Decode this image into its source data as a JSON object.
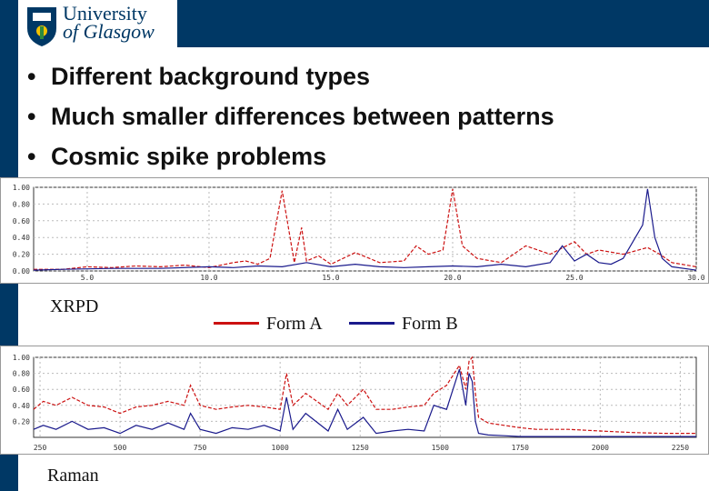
{
  "logo": {
    "line1": "University",
    "line2": "of Glasgow"
  },
  "bullets": [
    "Different background types",
    "Much smaller differences between patterns",
    "Cosmic spike problems"
  ],
  "legend": {
    "formA": "Form A",
    "formB": "Form B"
  },
  "colors": {
    "formA": "#cc1111",
    "formB": "#1a1a8c",
    "navy": "#003865"
  },
  "chart_data": [
    {
      "type": "line",
      "caption": "XRPD",
      "x_ticks": [
        "5.0",
        "10.0",
        "15.0",
        "20.0",
        "25.0",
        "30.0"
      ],
      "y_ticks": [
        "1.00",
        "0.80",
        "0.60",
        "0.40",
        "0.20",
        "0.00"
      ],
      "xlim": [
        2.8,
        30.0
      ],
      "ylim": [
        0,
        1.0
      ],
      "grid": true,
      "series": [
        {
          "name": "Form A",
          "x": [
            2.8,
            4,
            5,
            6,
            7,
            8,
            9,
            10,
            11,
            11.5,
            12,
            12.5,
            13,
            13.5,
            13.8,
            14,
            14.5,
            15,
            16,
            17,
            18,
            18.5,
            19,
            19.6,
            20,
            20.4,
            21,
            22,
            23,
            24,
            25,
            25.5,
            26,
            27,
            28,
            28.5,
            29,
            30
          ],
          "y": [
            0.02,
            0.02,
            0.05,
            0.04,
            0.06,
            0.05,
            0.07,
            0.04,
            0.1,
            0.12,
            0.08,
            0.15,
            0.96,
            0.1,
            0.52,
            0.12,
            0.18,
            0.08,
            0.22,
            0.1,
            0.12,
            0.3,
            0.2,
            0.25,
            0.98,
            0.3,
            0.15,
            0.1,
            0.3,
            0.2,
            0.35,
            0.2,
            0.25,
            0.2,
            0.28,
            0.2,
            0.1,
            0.05
          ]
        },
        {
          "name": "Form B",
          "x": [
            2.8,
            4,
            6,
            8,
            10,
            11,
            12,
            13,
            14,
            15,
            16,
            17,
            18,
            19,
            20,
            21,
            22,
            23,
            24,
            24.5,
            25,
            25.5,
            26,
            26.5,
            27,
            27.5,
            27.8,
            28,
            28.3,
            28.6,
            29,
            30
          ],
          "y": [
            0.01,
            0.02,
            0.03,
            0.03,
            0.05,
            0.04,
            0.06,
            0.05,
            0.1,
            0.05,
            0.08,
            0.05,
            0.04,
            0.05,
            0.06,
            0.05,
            0.08,
            0.05,
            0.1,
            0.3,
            0.12,
            0.2,
            0.1,
            0.08,
            0.15,
            0.4,
            0.55,
            0.98,
            0.4,
            0.15,
            0.05,
            0.01
          ]
        }
      ]
    },
    {
      "type": "line",
      "caption": "Raman",
      "x_ticks": [
        "250",
        "500",
        "750",
        "1000",
        "1250",
        "1500",
        "1750",
        "2000",
        "2250"
      ],
      "y_ticks": [
        "1.00",
        "0.80",
        "0.60",
        "0.40",
        "0.20"
      ],
      "xlim": [
        230,
        2300
      ],
      "ylim": [
        0,
        1.0
      ],
      "grid": true,
      "series": [
        {
          "name": "Form A",
          "x": [
            230,
            260,
            300,
            350,
            400,
            450,
            500,
            550,
            600,
            650,
            700,
            720,
            750,
            800,
            850,
            900,
            950,
            1000,
            1020,
            1040,
            1080,
            1150,
            1180,
            1210,
            1260,
            1300,
            1350,
            1400,
            1450,
            1480,
            1520,
            1560,
            1580,
            1590,
            1600,
            1610,
            1620,
            1650,
            1700,
            1750,
            1800,
            1900,
            2000,
            2100,
            2200,
            2300
          ],
          "y": [
            0.35,
            0.45,
            0.4,
            0.5,
            0.4,
            0.38,
            0.3,
            0.38,
            0.4,
            0.45,
            0.4,
            0.65,
            0.4,
            0.35,
            0.38,
            0.4,
            0.38,
            0.35,
            0.8,
            0.4,
            0.55,
            0.35,
            0.55,
            0.4,
            0.6,
            0.35,
            0.35,
            0.38,
            0.4,
            0.55,
            0.65,
            0.9,
            0.6,
            0.95,
            1.0,
            0.55,
            0.25,
            0.18,
            0.15,
            0.12,
            0.1,
            0.1,
            0.08,
            0.06,
            0.05,
            0.05
          ]
        },
        {
          "name": "Form B",
          "x": [
            230,
            260,
            300,
            350,
            400,
            450,
            500,
            550,
            600,
            650,
            700,
            720,
            750,
            800,
            850,
            900,
            950,
            1000,
            1020,
            1040,
            1080,
            1150,
            1180,
            1210,
            1260,
            1300,
            1350,
            1400,
            1450,
            1480,
            1520,
            1560,
            1580,
            1590,
            1600,
            1610,
            1620,
            1650,
            1700,
            1750,
            1800,
            1900,
            2000,
            2100,
            2200,
            2300
          ],
          "y": [
            0.1,
            0.15,
            0.1,
            0.2,
            0.1,
            0.12,
            0.05,
            0.15,
            0.1,
            0.18,
            0.1,
            0.3,
            0.1,
            0.05,
            0.12,
            0.1,
            0.15,
            0.08,
            0.5,
            0.1,
            0.3,
            0.08,
            0.35,
            0.1,
            0.25,
            0.05,
            0.08,
            0.1,
            0.08,
            0.4,
            0.35,
            0.85,
            0.4,
            0.8,
            0.7,
            0.2,
            0.05,
            0.03,
            0.02,
            0.01,
            0.01,
            0.01,
            0.01,
            0.01,
            0.01,
            0.01
          ]
        }
      ]
    }
  ]
}
